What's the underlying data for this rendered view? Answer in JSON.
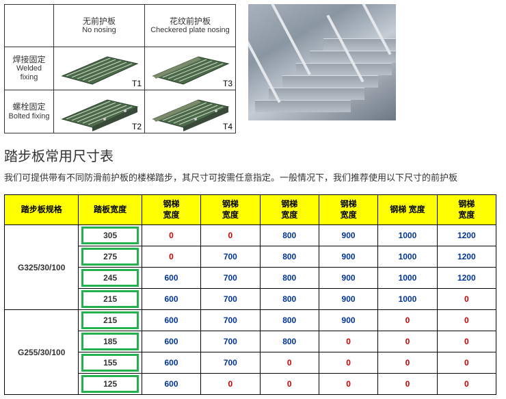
{
  "diagram": {
    "col1_cn": "无前护板",
    "col1_en": "No nosing",
    "col2_cn": "花纹前护板",
    "col2_en": "Checkered plate nosing",
    "row1_cn": "焊接固定",
    "row1_en": "Welded fixing",
    "row2_cn": "螺栓固定",
    "row2_en": "Bolted fixing",
    "t1": "T1",
    "t2": "T2",
    "t3": "T3",
    "t4": "T4"
  },
  "title": "踏步板常用尺寸表",
  "subtitle": "我们可提供带有不同防滑前护板的楼梯踏步，其尺寸可按需任意指定。一般情况下，我们推荐使用以下尺寸的前护板",
  "headers": {
    "spec": "踏步板规格",
    "width": "踏板宽度",
    "c1": "钢梯",
    "c1b": "宽度",
    "c2": "钢梯",
    "c2b": "宽度",
    "c3": "钢梯",
    "c3b": "宽度",
    "c4": "钢梯",
    "c4b": "宽度",
    "c5": "钢梯 宽度",
    "c6": "钢梯",
    "c6b": "宽度"
  },
  "spec1": "G325/30/100",
  "spec2": "G255/30/100",
  "rows": [
    {
      "w": "305",
      "v": [
        "0",
        "0",
        "800",
        "900",
        "1000",
        "1200"
      ],
      "cls": [
        "red",
        "red",
        "blue",
        "blue",
        "blue",
        "blue"
      ]
    },
    {
      "w": "275",
      "v": [
        "0",
        "700",
        "800",
        "900",
        "1000",
        "1200"
      ],
      "cls": [
        "red",
        "blue",
        "blue",
        "blue",
        "blue",
        "blue"
      ]
    },
    {
      "w": "245",
      "v": [
        "600",
        "700",
        "800",
        "900",
        "1000",
        "1200"
      ],
      "cls": [
        "blue",
        "blue",
        "blue",
        "blue",
        "blue",
        "blue"
      ]
    },
    {
      "w": "215",
      "v": [
        "600",
        "700",
        "800",
        "900",
        "1000",
        "0"
      ],
      "cls": [
        "blue",
        "blue",
        "blue",
        "blue",
        "blue",
        "red"
      ]
    },
    {
      "w": "215",
      "v": [
        "600",
        "700",
        "800",
        "900",
        "0",
        "0"
      ],
      "cls": [
        "blue",
        "blue",
        "blue",
        "blue",
        "red",
        "red"
      ]
    },
    {
      "w": "185",
      "v": [
        "600",
        "700",
        "800",
        "0",
        "0",
        "0"
      ],
      "cls": [
        "blue",
        "blue",
        "blue",
        "red",
        "red",
        "red"
      ]
    },
    {
      "w": "155",
      "v": [
        "600",
        "700",
        "0",
        "0",
        "0",
        "0"
      ],
      "cls": [
        "blue",
        "blue",
        "red",
        "red",
        "red",
        "red"
      ]
    },
    {
      "w": "125",
      "v": [
        "600",
        "0",
        "0",
        "0",
        "0",
        "0"
      ],
      "cls": [
        "blue",
        "red",
        "red",
        "red",
        "red",
        "red"
      ]
    }
  ]
}
